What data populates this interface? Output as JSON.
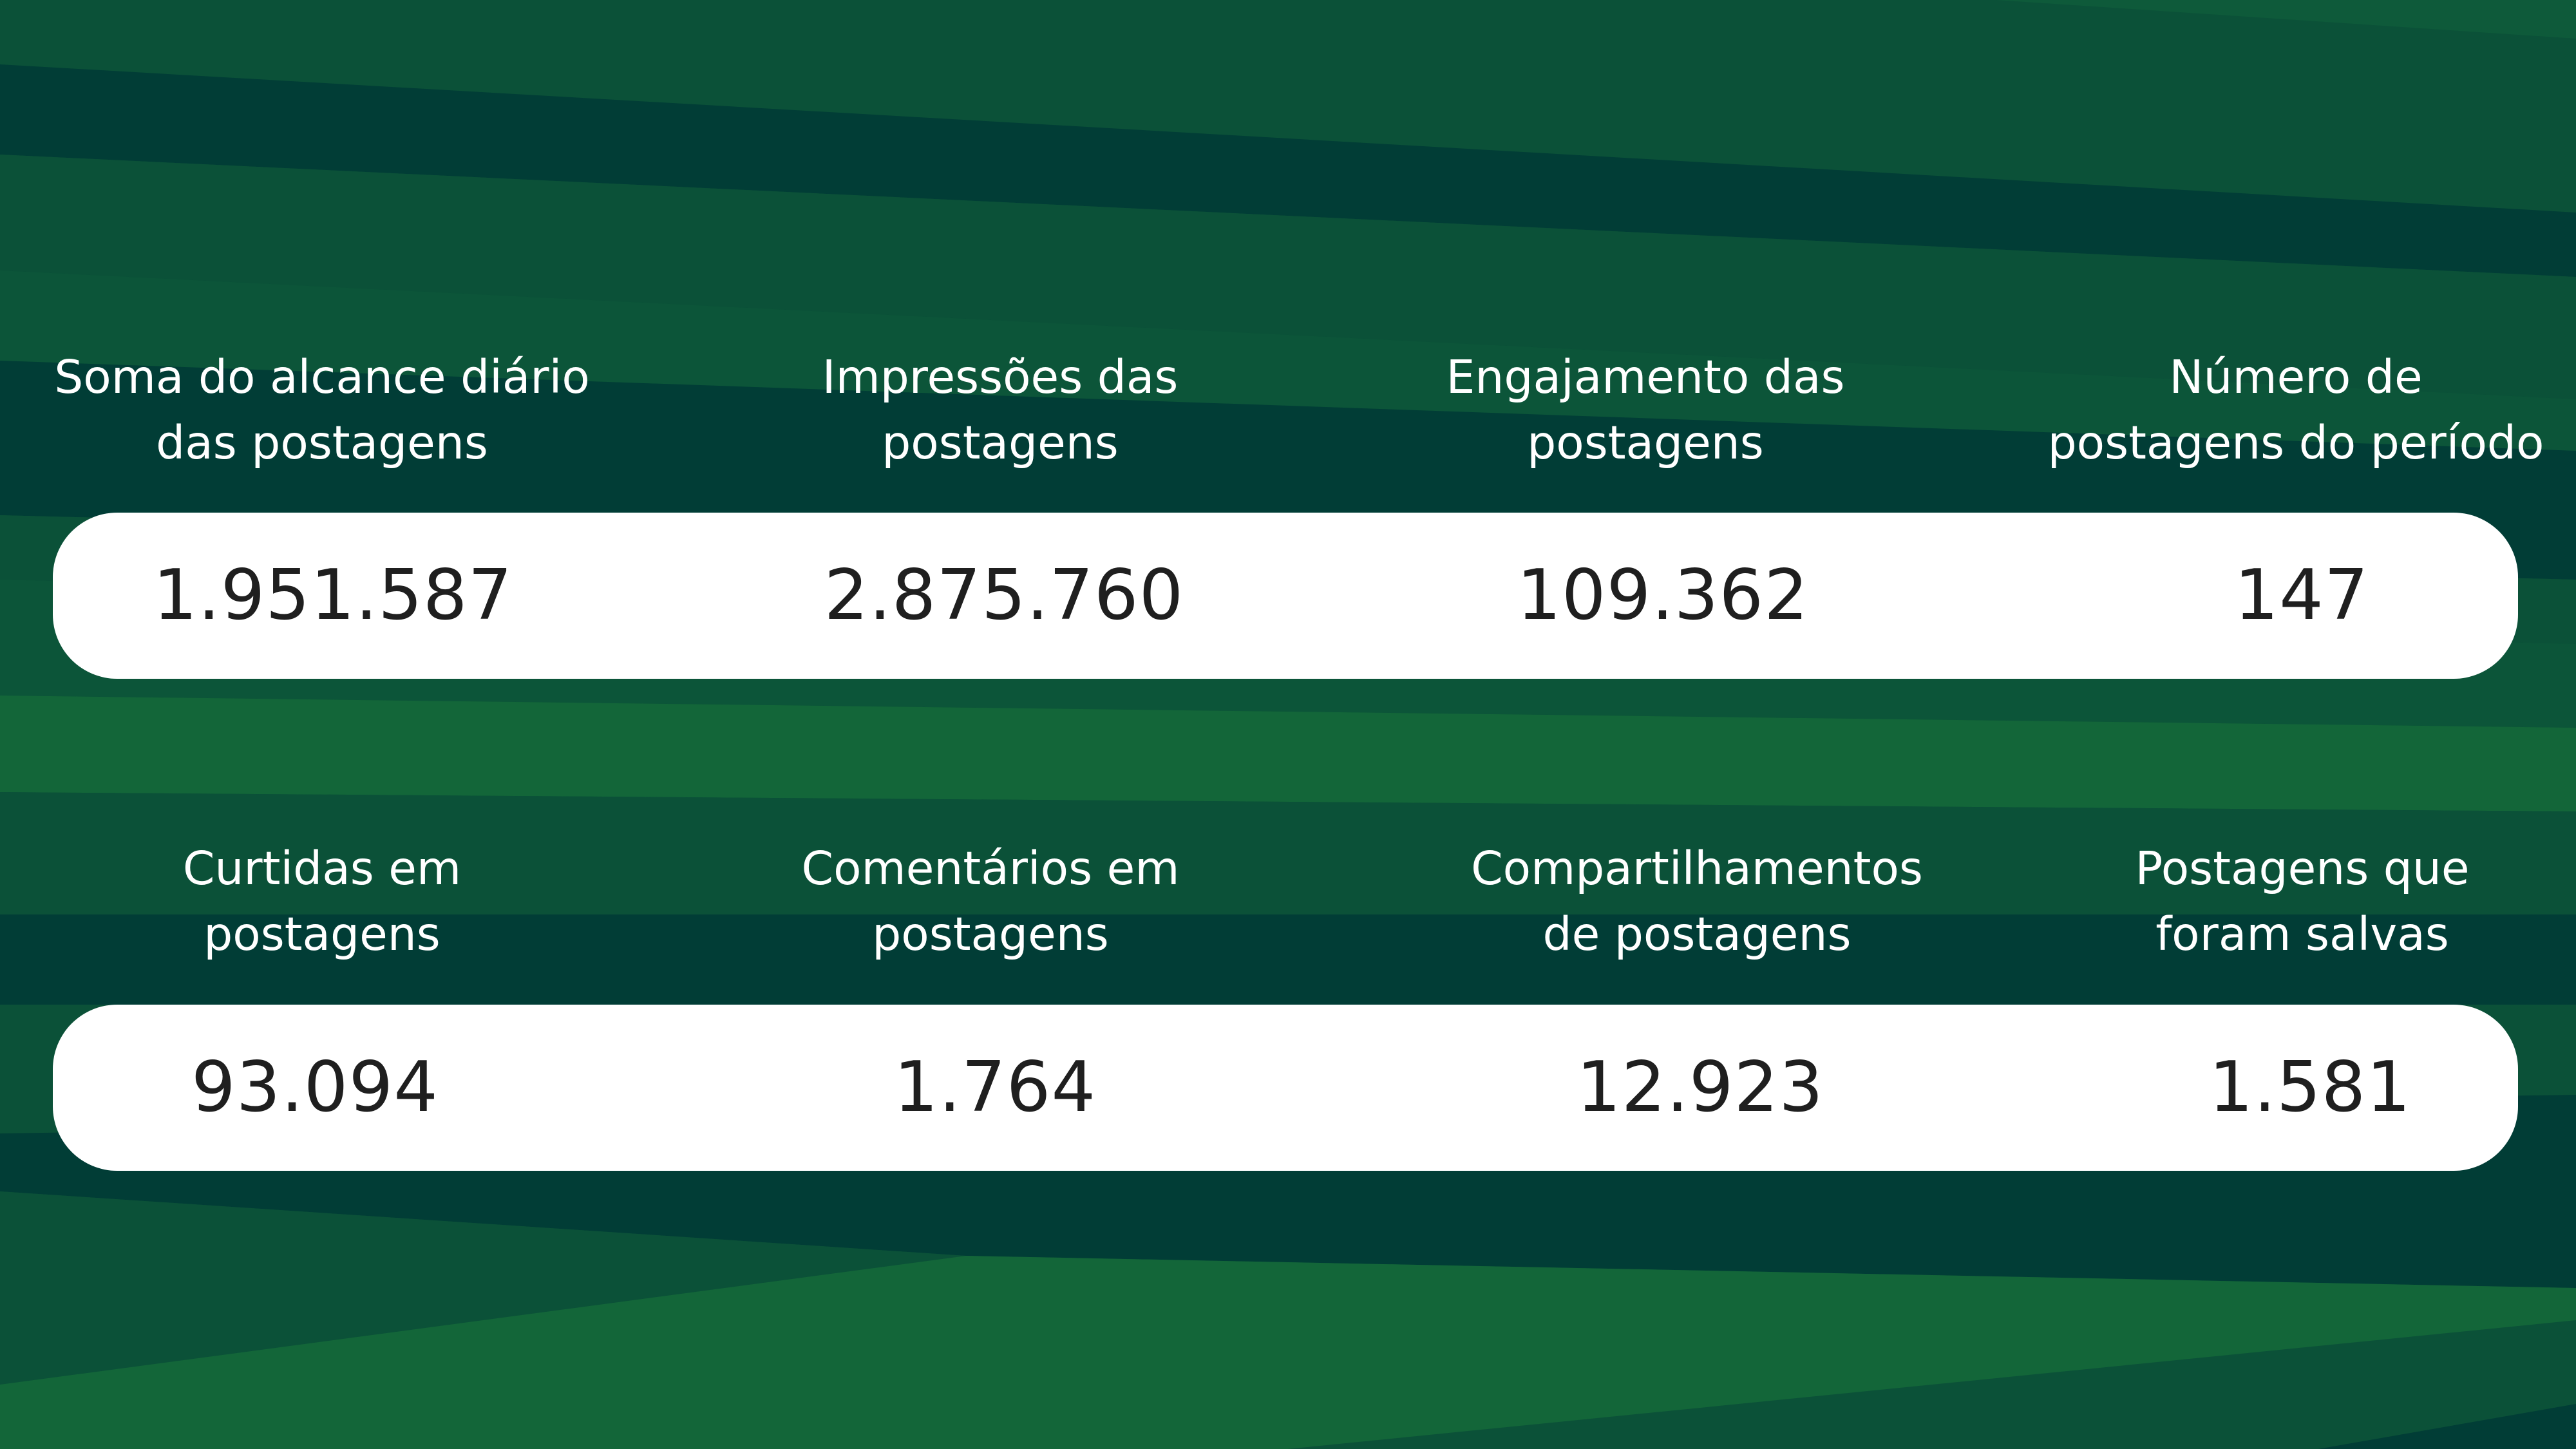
{
  "colors": {
    "background_dark": "#013d36",
    "background_mid": "#0b5138",
    "background_light": "#136639",
    "panel": "#ffffff",
    "label_text": "#ffffff",
    "value_text": "#1f1f1f"
  },
  "rows": [
    {
      "metrics": [
        {
          "label_line1": "Soma do alcance diário",
          "label_line2": "das postagens",
          "value": "1.951.587"
        },
        {
          "label_line1": "Impressões das",
          "label_line2": "postagens",
          "value": "2.875.760"
        },
        {
          "label_line1": "Engajamento das",
          "label_line2": "postagens",
          "value": "109.362"
        },
        {
          "label_line1": "Número de",
          "label_line2": "postagens do período",
          "value": "147"
        }
      ]
    },
    {
      "metrics": [
        {
          "label_line1": "Curtidas em",
          "label_line2": "postagens",
          "value": "93.094"
        },
        {
          "label_line1": "Comentários em",
          "label_line2": "postagens",
          "value": "1.764"
        },
        {
          "label_line1": "Compartilhamentos",
          "label_line2": "de postagens",
          "value": "12.923"
        },
        {
          "label_line1": "Postagens que",
          "label_line2": "foram salvas",
          "value": "1.581"
        }
      ]
    }
  ]
}
